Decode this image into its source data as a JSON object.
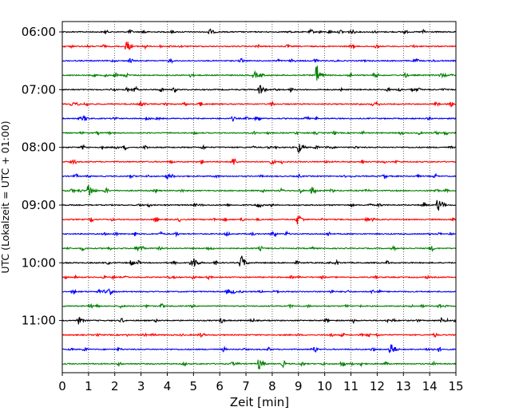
{
  "chart_data": {
    "type": "line",
    "xlabel": "Zeit  [min]",
    "ylabel": "UTC (Lokalzeit = UTC + 01:00)",
    "xlim": [
      0,
      15
    ],
    "x_ticks": [
      "0",
      "1",
      "2",
      "3",
      "4",
      "5",
      "6",
      "7",
      "8",
      "9",
      "10",
      "11",
      "12",
      "13",
      "14",
      "15"
    ],
    "y_ticks": [
      "06:00",
      "07:00",
      "08:00",
      "09:00",
      "10:00",
      "11:00"
    ],
    "grid": "vertical dotted at each minute",
    "trace_colors": [
      "#000000",
      "#ff0000",
      "#0000ff",
      "#008000"
    ],
    "trace_count": 24,
    "trace_start_times": [
      "06:00",
      "06:15",
      "06:30",
      "06:45",
      "07:00",
      "07:15",
      "07:30",
      "07:45",
      "08:00",
      "08:15",
      "08:30",
      "08:45",
      "09:00",
      "09:15",
      "09:30",
      "09:45",
      "10:00",
      "10:15",
      "10:30",
      "10:45",
      "11:00",
      "11:15",
      "11:30",
      "11:45"
    ],
    "events": [
      {
        "trace": 0,
        "minute": 5.6,
        "amplitude": 0.25
      },
      {
        "trace": 1,
        "minute": 2.45,
        "amplitude": 0.5
      },
      {
        "trace": 3,
        "minute": 9.7,
        "amplitude": 0.75
      },
      {
        "trace": 3,
        "minute": 7.3,
        "amplitude": 0.3
      },
      {
        "trace": 4,
        "minute": 7.5,
        "amplitude": 0.55
      },
      {
        "trace": 8,
        "minute": 9.0,
        "amplitude": 0.45
      },
      {
        "trace": 11,
        "minute": 1.0,
        "amplitude": 0.6
      },
      {
        "trace": 11,
        "minute": 9.5,
        "amplitude": 0.3
      },
      {
        "trace": 12,
        "minute": 14.3,
        "amplitude": 0.55
      },
      {
        "trace": 13,
        "minute": 9.0,
        "amplitude": 0.4
      },
      {
        "trace": 16,
        "minute": 6.8,
        "amplitude": 0.7
      },
      {
        "trace": 16,
        "minute": 5.0,
        "amplitude": 0.35
      },
      {
        "trace": 20,
        "minute": 0.6,
        "amplitude": 0.3
      },
      {
        "trace": 22,
        "minute": 12.5,
        "amplitude": 0.55
      },
      {
        "trace": 23,
        "minute": 7.5,
        "amplitude": 0.45
      }
    ]
  }
}
